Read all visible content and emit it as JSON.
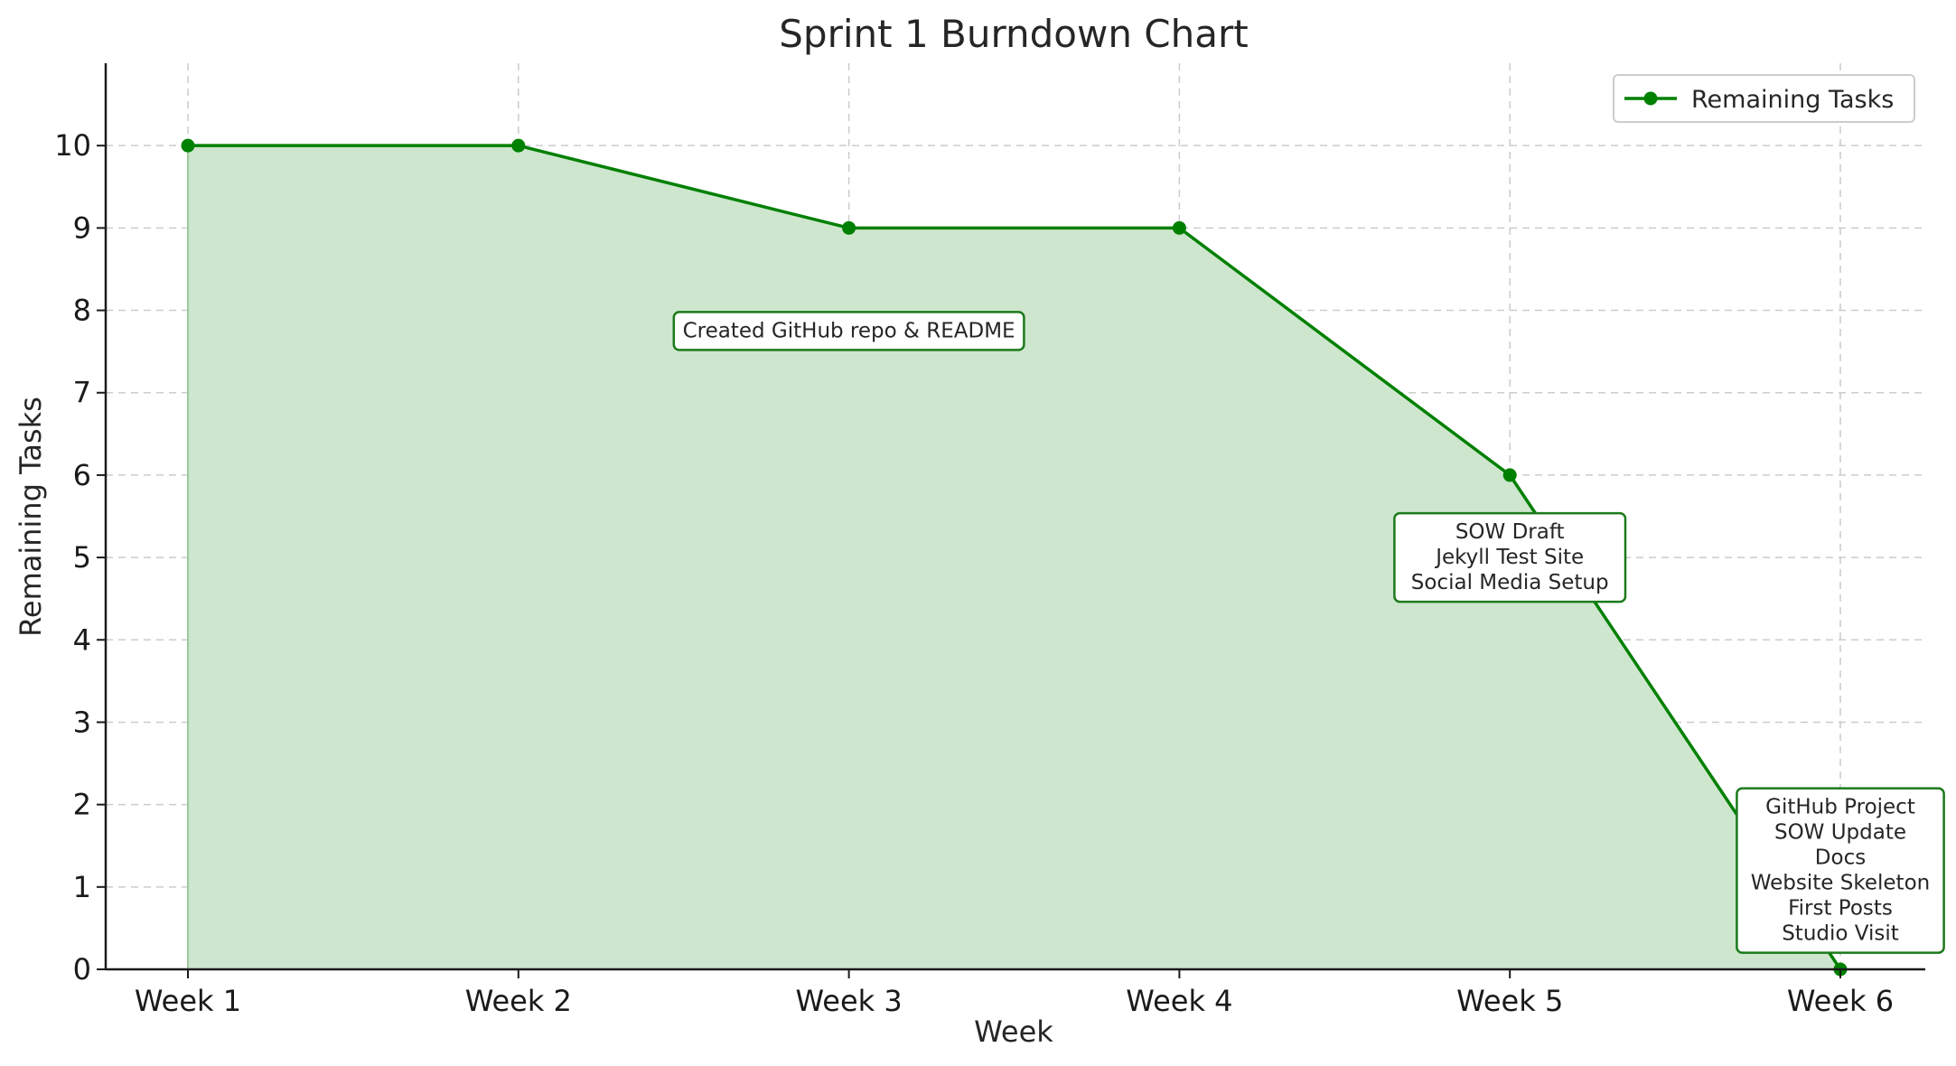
{
  "chart_data": {
    "type": "area",
    "title": "Sprint 1 Burndown Chart",
    "xlabel": "Week",
    "ylabel": "Remaining Tasks",
    "categories": [
      "Week 1",
      "Week 2",
      "Week 3",
      "Week 4",
      "Week 5",
      "Week 6"
    ],
    "series": [
      {
        "name": "Remaining Tasks",
        "values": [
          10,
          10,
          9,
          9,
          6,
          0
        ]
      }
    ],
    "ylim": [
      0,
      11
    ],
    "yticks": [
      "0",
      "1",
      "2",
      "3",
      "4",
      "5",
      "6",
      "7",
      "8",
      "9",
      "10"
    ],
    "grid": true,
    "legend_position": "top-right",
    "colors": {
      "line": "#008000",
      "fill": "#cde6cd",
      "annotation_border": "#1b7a1b"
    },
    "annotations": [
      {
        "category": "Week 3",
        "y": 7.75,
        "lines": [
          "Created GitHub repo & README"
        ]
      },
      {
        "category": "Week 5",
        "y": 5.0,
        "lines": [
          "SOW Draft",
          "Jekyll Test Site",
          "Social Media Setup"
        ]
      },
      {
        "category": "Week 6",
        "y": 1.2,
        "lines": [
          "GitHub Project",
          "SOW Update",
          "Docs",
          "Website Skeleton",
          "First Posts",
          "Studio Visit"
        ]
      }
    ]
  }
}
